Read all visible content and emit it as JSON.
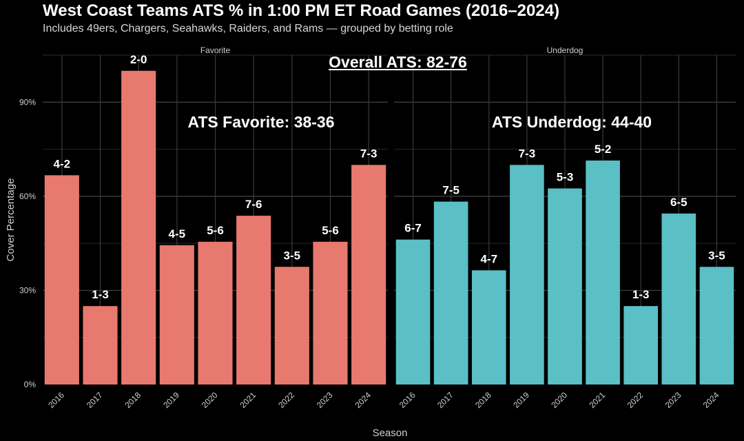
{
  "header": {
    "title": "West Coast Teams ATS % in 1:00 PM ET Road Games (2016–2024)",
    "subtitle": "Includes 49ers, Chargers, Seahawks, Raiders, and Rams — grouped by betting role"
  },
  "annotations": {
    "overall": "Overall ATS: 82-76",
    "favorite": "ATS Favorite: 38-36",
    "underdog": "ATS Underdog: 44-40"
  },
  "colors": {
    "favorite": "#e8796f",
    "underdog": "#5bbfc6",
    "background": "#000000",
    "grid": "#3a3a3a"
  },
  "chart_data": {
    "type": "bar",
    "xlabel": "Season",
    "ylabel": "Cover Percentage",
    "ylim": [
      0,
      1.05
    ],
    "yticks": [
      0,
      0.3,
      0.6,
      0.9
    ],
    "ytick_labels": [
      "0%",
      "30%",
      "60%",
      "90%"
    ],
    "grid": true,
    "categories": [
      "2016",
      "2017",
      "2018",
      "2019",
      "2020",
      "2021",
      "2022",
      "2023",
      "2024"
    ],
    "panels": [
      {
        "name": "Favorite",
        "values": [
          0.667,
          0.25,
          1.0,
          0.444,
          0.455,
          0.538,
          0.375,
          0.455,
          0.7
        ],
        "labels": [
          "4-2",
          "1-3",
          "2-0",
          "4-5",
          "5-6",
          "7-6",
          "3-5",
          "5-6",
          "7-3"
        ]
      },
      {
        "name": "Underdog",
        "values": [
          0.462,
          0.583,
          0.364,
          0.7,
          0.625,
          0.714,
          0.25,
          0.545,
          0.375
        ],
        "labels": [
          "6-7",
          "7-5",
          "4-7",
          "7-3",
          "5-3",
          "5-2",
          "1-3",
          "6-5",
          "3-5"
        ]
      }
    ]
  }
}
